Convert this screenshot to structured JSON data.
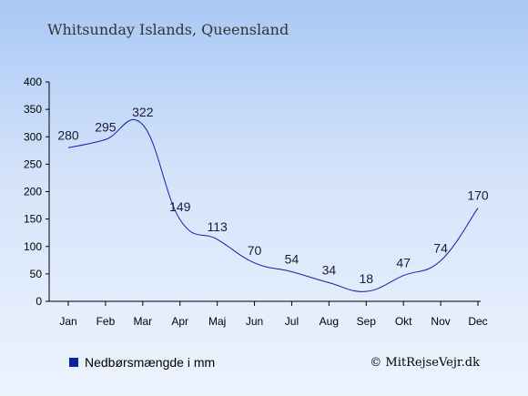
{
  "chart_data": {
    "type": "line",
    "title": "Whitsunday Islands, Queensland",
    "categories": [
      "Jan",
      "Feb",
      "Mar",
      "Apr",
      "Maj",
      "Jun",
      "Jul",
      "Aug",
      "Sep",
      "Okt",
      "Nov",
      "Dec"
    ],
    "series": [
      {
        "name": "Nedbørsmængde i mm",
        "values": [
          280,
          295,
          322,
          149,
          113,
          70,
          54,
          34,
          18,
          47,
          74,
          170
        ]
      }
    ],
    "yticks": [
      0,
      50,
      100,
      150,
      200,
      250,
      300,
      350,
      400
    ],
    "ylim": [
      0,
      400
    ],
    "grid": false,
    "legend_position": "bottom-left",
    "line_color": "#1a1aa8",
    "legend_swatch_color": "#0a22a0"
  },
  "credit": "© MitRejseVejr.dk"
}
